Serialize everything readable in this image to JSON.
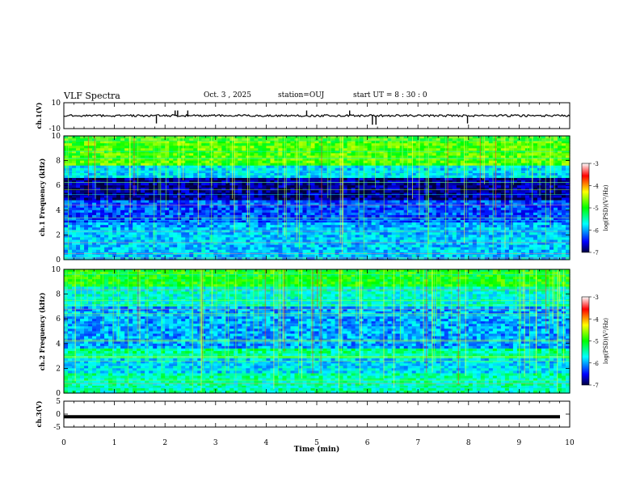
{
  "header": {
    "title": "VLF Spectra",
    "date": "Oct. 3 , 2025",
    "station": "station=OUJ",
    "start_ut": "start UT = 8 : 30 : 0"
  },
  "chart_data": [
    {
      "type": "line",
      "name": "ch1-waveform",
      "ylabel": "ch.1(V)",
      "ylim": [
        -10,
        10
      ],
      "yticks": [
        "10",
        "-10"
      ],
      "xlim": [
        0,
        10
      ],
      "baseline": 0,
      "spikes": [
        {
          "x": 1.83,
          "y": -6
        },
        {
          "x": 2.2,
          "y": 4
        },
        {
          "x": 2.25,
          "y": 4
        },
        {
          "x": 2.45,
          "y": 4
        },
        {
          "x": 4.8,
          "y": 4
        },
        {
          "x": 5.65,
          "y": 4
        },
        {
          "x": 6.1,
          "y": -7
        },
        {
          "x": 6.17,
          "y": -7
        },
        {
          "x": 7.98,
          "y": -6
        }
      ]
    },
    {
      "type": "heatmap",
      "name": "ch1-spectrogram",
      "ylabel": "ch.1 Frequency (kHz)",
      "ylim": [
        0,
        10
      ],
      "yticks": [
        "0",
        "2",
        "4",
        "6",
        "8",
        "10"
      ],
      "xlim": [
        0,
        10
      ],
      "colorbar": {
        "label": "log(PSD)(V²/Hz)",
        "range": [
          -7,
          -3
        ],
        "ticks": [
          "-3",
          "-4",
          "-5",
          "-6",
          "-7"
        ]
      }
    },
    {
      "type": "heatmap",
      "name": "ch2-spectrogram",
      "ylabel": "ch.2 Frequency (kHz)",
      "ylim": [
        0,
        10
      ],
      "yticks": [
        "0",
        "2",
        "4",
        "6",
        "8",
        "10"
      ],
      "xlim": [
        0,
        10
      ],
      "colorbar": {
        "label": "log(PSD)(V²/Hz)",
        "range": [
          -7,
          -3
        ],
        "ticks": [
          "-3",
          "-4",
          "-5",
          "-6",
          "-7"
        ]
      }
    },
    {
      "type": "line",
      "name": "ch3-waveform",
      "ylabel": "ch.3(V)",
      "ylim": [
        -5,
        5
      ],
      "yticks": [
        "5",
        "0",
        "-5"
      ],
      "xlim": [
        0,
        10
      ],
      "baseline": -1
    }
  ],
  "xaxis": {
    "label": "Time (min)",
    "ticks": [
      "0",
      "1",
      "2",
      "3",
      "4",
      "5",
      "6",
      "7",
      "8",
      "9",
      "10"
    ]
  }
}
